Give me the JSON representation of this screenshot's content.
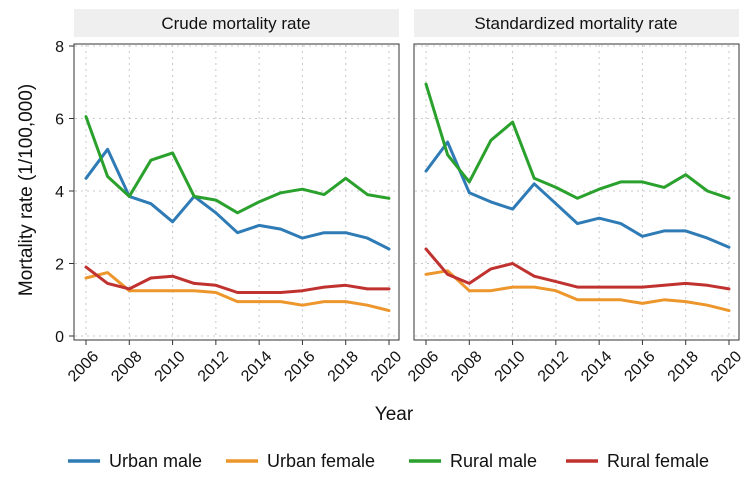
{
  "chart_data": {
    "type": "line",
    "xlabel": "Year",
    "ylabel": "Mortality rate (1/100,000)",
    "ylim": [
      0,
      8
    ],
    "yticks": [
      0,
      2,
      4,
      6,
      8
    ],
    "xticks": [
      2006,
      2008,
      2010,
      2012,
      2014,
      2016,
      2018,
      2020
    ],
    "x": [
      2006,
      2007,
      2008,
      2009,
      2010,
      2011,
      2012,
      2013,
      2014,
      2015,
      2016,
      2017,
      2018,
      2019,
      2020
    ],
    "legend": [
      {
        "key": "urban_male",
        "label": "Urban male",
        "color": "#2e7bb6"
      },
      {
        "key": "urban_female",
        "label": "Urban female",
        "color": "#ec962c"
      },
      {
        "key": "rural_male",
        "label": "Rural male",
        "color": "#2aa12c"
      },
      {
        "key": "rural_female",
        "label": "Rural female",
        "color": "#c0322f"
      }
    ],
    "panels": [
      {
        "title": "Crude mortality rate",
        "series": [
          {
            "key": "urban_male",
            "name": "Urban male",
            "values": [
              4.35,
              5.15,
              3.85,
              3.65,
              3.15,
              3.85,
              3.4,
              2.85,
              3.05,
              2.95,
              2.7,
              2.85,
              2.85,
              2.7,
              2.4
            ]
          },
          {
            "key": "urban_female",
            "name": "Urban female",
            "values": [
              1.6,
              1.75,
              1.25,
              1.25,
              1.25,
              1.25,
              1.2,
              0.95,
              0.95,
              0.95,
              0.85,
              0.95,
              0.95,
              0.85,
              0.7
            ]
          },
          {
            "key": "rural_male",
            "name": "Rural male",
            "values": [
              6.05,
              4.4,
              3.85,
              4.85,
              5.05,
              3.85,
              3.75,
              3.4,
              3.7,
              3.95,
              4.05,
              3.9,
              4.35,
              3.9,
              3.8
            ]
          },
          {
            "key": "rural_female",
            "name": "Rural female",
            "values": [
              1.9,
              1.45,
              1.3,
              1.6,
              1.65,
              1.45,
              1.4,
              1.2,
              1.2,
              1.2,
              1.25,
              1.35,
              1.4,
              1.3,
              1.3
            ]
          }
        ]
      },
      {
        "title": "Standardized mortality rate",
        "series": [
          {
            "key": "urban_male",
            "name": "Urban male",
            "values": [
              4.55,
              5.35,
              3.95,
              3.7,
              3.5,
              4.2,
              3.65,
              3.1,
              3.25,
              3.1,
              2.75,
              2.9,
              2.9,
              2.7,
              2.45
            ]
          },
          {
            "key": "urban_female",
            "name": "Urban female",
            "values": [
              1.7,
              1.8,
              1.25,
              1.25,
              1.35,
              1.35,
              1.25,
              1.0,
              1.0,
              1.0,
              0.9,
              1.0,
              0.95,
              0.85,
              0.7
            ]
          },
          {
            "key": "rural_male",
            "name": "Rural male",
            "values": [
              6.95,
              5.0,
              4.25,
              5.4,
              5.9,
              4.35,
              4.1,
              3.8,
              4.05,
              4.25,
              4.25,
              4.1,
              4.45,
              4.0,
              3.8
            ]
          },
          {
            "key": "rural_female",
            "name": "Rural female",
            "values": [
              2.4,
              1.7,
              1.45,
              1.85,
              2.0,
              1.65,
              1.5,
              1.35,
              1.35,
              1.35,
              1.35,
              1.4,
              1.45,
              1.4,
              1.3
            ]
          }
        ]
      }
    ]
  }
}
